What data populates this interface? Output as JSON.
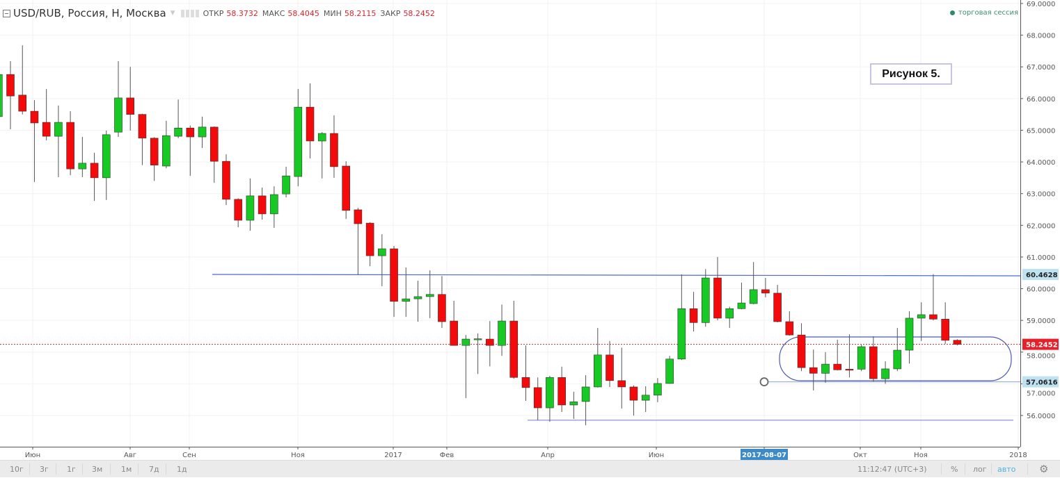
{
  "header": {
    "symbol": "USD/RUB, Россия, Н, Москва",
    "open_label": "ОТКР",
    "open": "58.3732",
    "high_label": "МАКС",
    "high": "58.4045",
    "low_label": "МИН",
    "low": "58.2115",
    "close_label": "ЗАКР",
    "close": "58.2452",
    "session": "торговая сессия"
  },
  "annotation": {
    "text": "Рисунок 5."
  },
  "chart_data": {
    "type": "candlestick",
    "ohlc_order": [
      "open",
      "high",
      "low",
      "close"
    ],
    "candles": [
      [
        65.43,
        66.8,
        65.3,
        66.76
      ],
      [
        66.76,
        67.18,
        65.03,
        66.08
      ],
      [
        66.11,
        67.68,
        65.5,
        65.6
      ],
      [
        65.6,
        65.95,
        63.37,
        65.23
      ],
      [
        65.25,
        66.3,
        64.68,
        64.81
      ],
      [
        64.81,
        65.78,
        63.52,
        65.25
      ],
      [
        65.25,
        65.6,
        63.58,
        63.78
      ],
      [
        63.78,
        64.79,
        63.52,
        63.96
      ],
      [
        63.96,
        64.29,
        62.77,
        63.5
      ],
      [
        63.5,
        64.99,
        62.8,
        64.86
      ],
      [
        64.94,
        67.18,
        64.79,
        66.02
      ],
      [
        66.02,
        67.0,
        64.99,
        65.5
      ],
      [
        65.5,
        65.52,
        63.9,
        64.75
      ],
      [
        64.75,
        64.78,
        63.4,
        63.9
      ],
      [
        63.87,
        65.3,
        63.8,
        64.83
      ],
      [
        64.81,
        65.97,
        64.75,
        65.07
      ],
      [
        65.07,
        65.15,
        63.56,
        64.79
      ],
      [
        64.79,
        65.43,
        64.44,
        65.1
      ],
      [
        65.1,
        65.12,
        63.34,
        64.02
      ],
      [
        64.02,
        64.24,
        62.64,
        62.82
      ],
      [
        62.82,
        62.85,
        61.94,
        62.16
      ],
      [
        62.16,
        63.48,
        61.83,
        62.93
      ],
      [
        62.93,
        63.19,
        62.18,
        62.36
      ],
      [
        62.36,
        63.23,
        61.92,
        62.97
      ],
      [
        62.99,
        63.85,
        62.88,
        63.56
      ],
      [
        63.54,
        66.3,
        63.23,
        65.73
      ],
      [
        65.73,
        66.48,
        64.11,
        64.66
      ],
      [
        64.66,
        64.94,
        63.48,
        64.9
      ],
      [
        64.9,
        65.47,
        63.5,
        63.85
      ],
      [
        63.87,
        64.02,
        62.2,
        62.47
      ],
      [
        62.49,
        62.55,
        60.45,
        62.05
      ],
      [
        62.07,
        62.1,
        60.71,
        61.04
      ],
      [
        61.04,
        61.72,
        60.08,
        61.26
      ],
      [
        61.26,
        61.35,
        59.11,
        59.6
      ],
      [
        59.6,
        60.67,
        59.11,
        59.68
      ],
      [
        59.68,
        60.25,
        58.96,
        59.75
      ],
      [
        59.75,
        60.58,
        59.07,
        59.82
      ],
      [
        59.82,
        60.4,
        58.76,
        58.96
      ],
      [
        58.98,
        59.62,
        58.2,
        58.21
      ],
      [
        58.21,
        58.54,
        56.55,
        58.41
      ],
      [
        58.41,
        58.59,
        57.31,
        58.42
      ],
      [
        58.41,
        58.98,
        57.55,
        58.21
      ],
      [
        58.21,
        59.5,
        57.88,
        58.98
      ],
      [
        58.98,
        59.62,
        57.16,
        57.2
      ],
      [
        57.2,
        58.21,
        56.46,
        56.88
      ],
      [
        56.88,
        57.2,
        55.85,
        56.24
      ],
      [
        56.24,
        57.25,
        55.8,
        57.2
      ],
      [
        57.2,
        57.54,
        56.11,
        56.33
      ],
      [
        56.33,
        56.75,
        55.89,
        56.43
      ],
      [
        56.44,
        57.27,
        55.69,
        56.9
      ],
      [
        56.9,
        58.76,
        56.88,
        57.91
      ],
      [
        57.91,
        58.35,
        56.9,
        57.1
      ],
      [
        57.1,
        58.14,
        56.22,
        56.9
      ],
      [
        56.9,
        56.95,
        56.0,
        56.48
      ],
      [
        56.48,
        56.92,
        56.11,
        56.64
      ],
      [
        56.64,
        57.18,
        56.42,
        57.01
      ],
      [
        57.01,
        57.88,
        57.0,
        57.78
      ],
      [
        57.78,
        60.45,
        57.75,
        59.37
      ],
      [
        59.37,
        59.9,
        58.65,
        58.93
      ],
      [
        58.93,
        60.62,
        58.8,
        60.34
      ],
      [
        60.34,
        61.0,
        59.0,
        59.07
      ],
      [
        59.07,
        59.43,
        58.76,
        59.37
      ],
      [
        59.37,
        60.19,
        59.35,
        59.55
      ],
      [
        59.53,
        60.84,
        59.51,
        59.97
      ],
      [
        59.97,
        60.34,
        59.73,
        59.86
      ],
      [
        59.86,
        60.12,
        58.94,
        58.96
      ],
      [
        58.96,
        59.29,
        58.52,
        58.54
      ],
      [
        58.54,
        58.91,
        57.4,
        57.51
      ],
      [
        57.51,
        58.08,
        56.79,
        57.33
      ],
      [
        57.33,
        58.0,
        57.03,
        57.62
      ],
      [
        57.62,
        58.39,
        57.42,
        57.44
      ],
      [
        57.46,
        58.56,
        57.2,
        57.45
      ],
      [
        57.46,
        58.23,
        57.4,
        58.17
      ],
      [
        58.17,
        58.5,
        57.07,
        57.16
      ],
      [
        57.16,
        57.71,
        57.0,
        57.47
      ],
      [
        57.47,
        58.76,
        57.4,
        58.06
      ],
      [
        58.06,
        59.29,
        57.64,
        59.07
      ],
      [
        59.07,
        59.57,
        58.35,
        59.18
      ],
      [
        59.18,
        60.46,
        59.0,
        59.04
      ],
      [
        59.04,
        59.57,
        58.26,
        58.37
      ],
      [
        58.3732,
        58.4045,
        58.2115,
        58.2452
      ]
    ],
    "y_ticks": [
      "69.0000",
      "68.0000",
      "67.0000",
      "66.0000",
      "65.0000",
      "64.0000",
      "63.0000",
      "62.0000",
      "61.0000",
      "60.0000",
      "59.0000",
      "58.0000",
      "57.0000",
      "56.0000"
    ],
    "ylim": [
      55.3,
      69.0
    ],
    "x_ticks": [
      "Июн",
      "Авг",
      "Сен",
      "Ноя",
      "2017",
      "Фев",
      "Апр",
      "Июн",
      "2017-08-07",
      "Окт",
      "Ноя",
      "2018"
    ],
    "x_highlight": "2017-08-07",
    "levels": [
      {
        "value": 60.4628,
        "label": "60.4628",
        "color": "#4a6bd6"
      },
      {
        "value": 57.0616,
        "label": "57.0616",
        "color": "#4a6bd6"
      },
      {
        "value": 55.85,
        "color": "#4a6bd6"
      }
    ],
    "last_price": {
      "value": 58.2452,
      "label": "58.2452",
      "color": "#e5202a"
    },
    "colors": {
      "up": "#16c923",
      "down": "#f40a0a",
      "wick": "#555555"
    },
    "grid": true
  },
  "toolbar": {
    "ranges": [
      "10г",
      "3г",
      "1г",
      "3м",
      "1м",
      "7д",
      "1д"
    ],
    "time": "11:12:47 (UTC+3)",
    "percent": "%",
    "log": "лог",
    "auto": "авто"
  }
}
